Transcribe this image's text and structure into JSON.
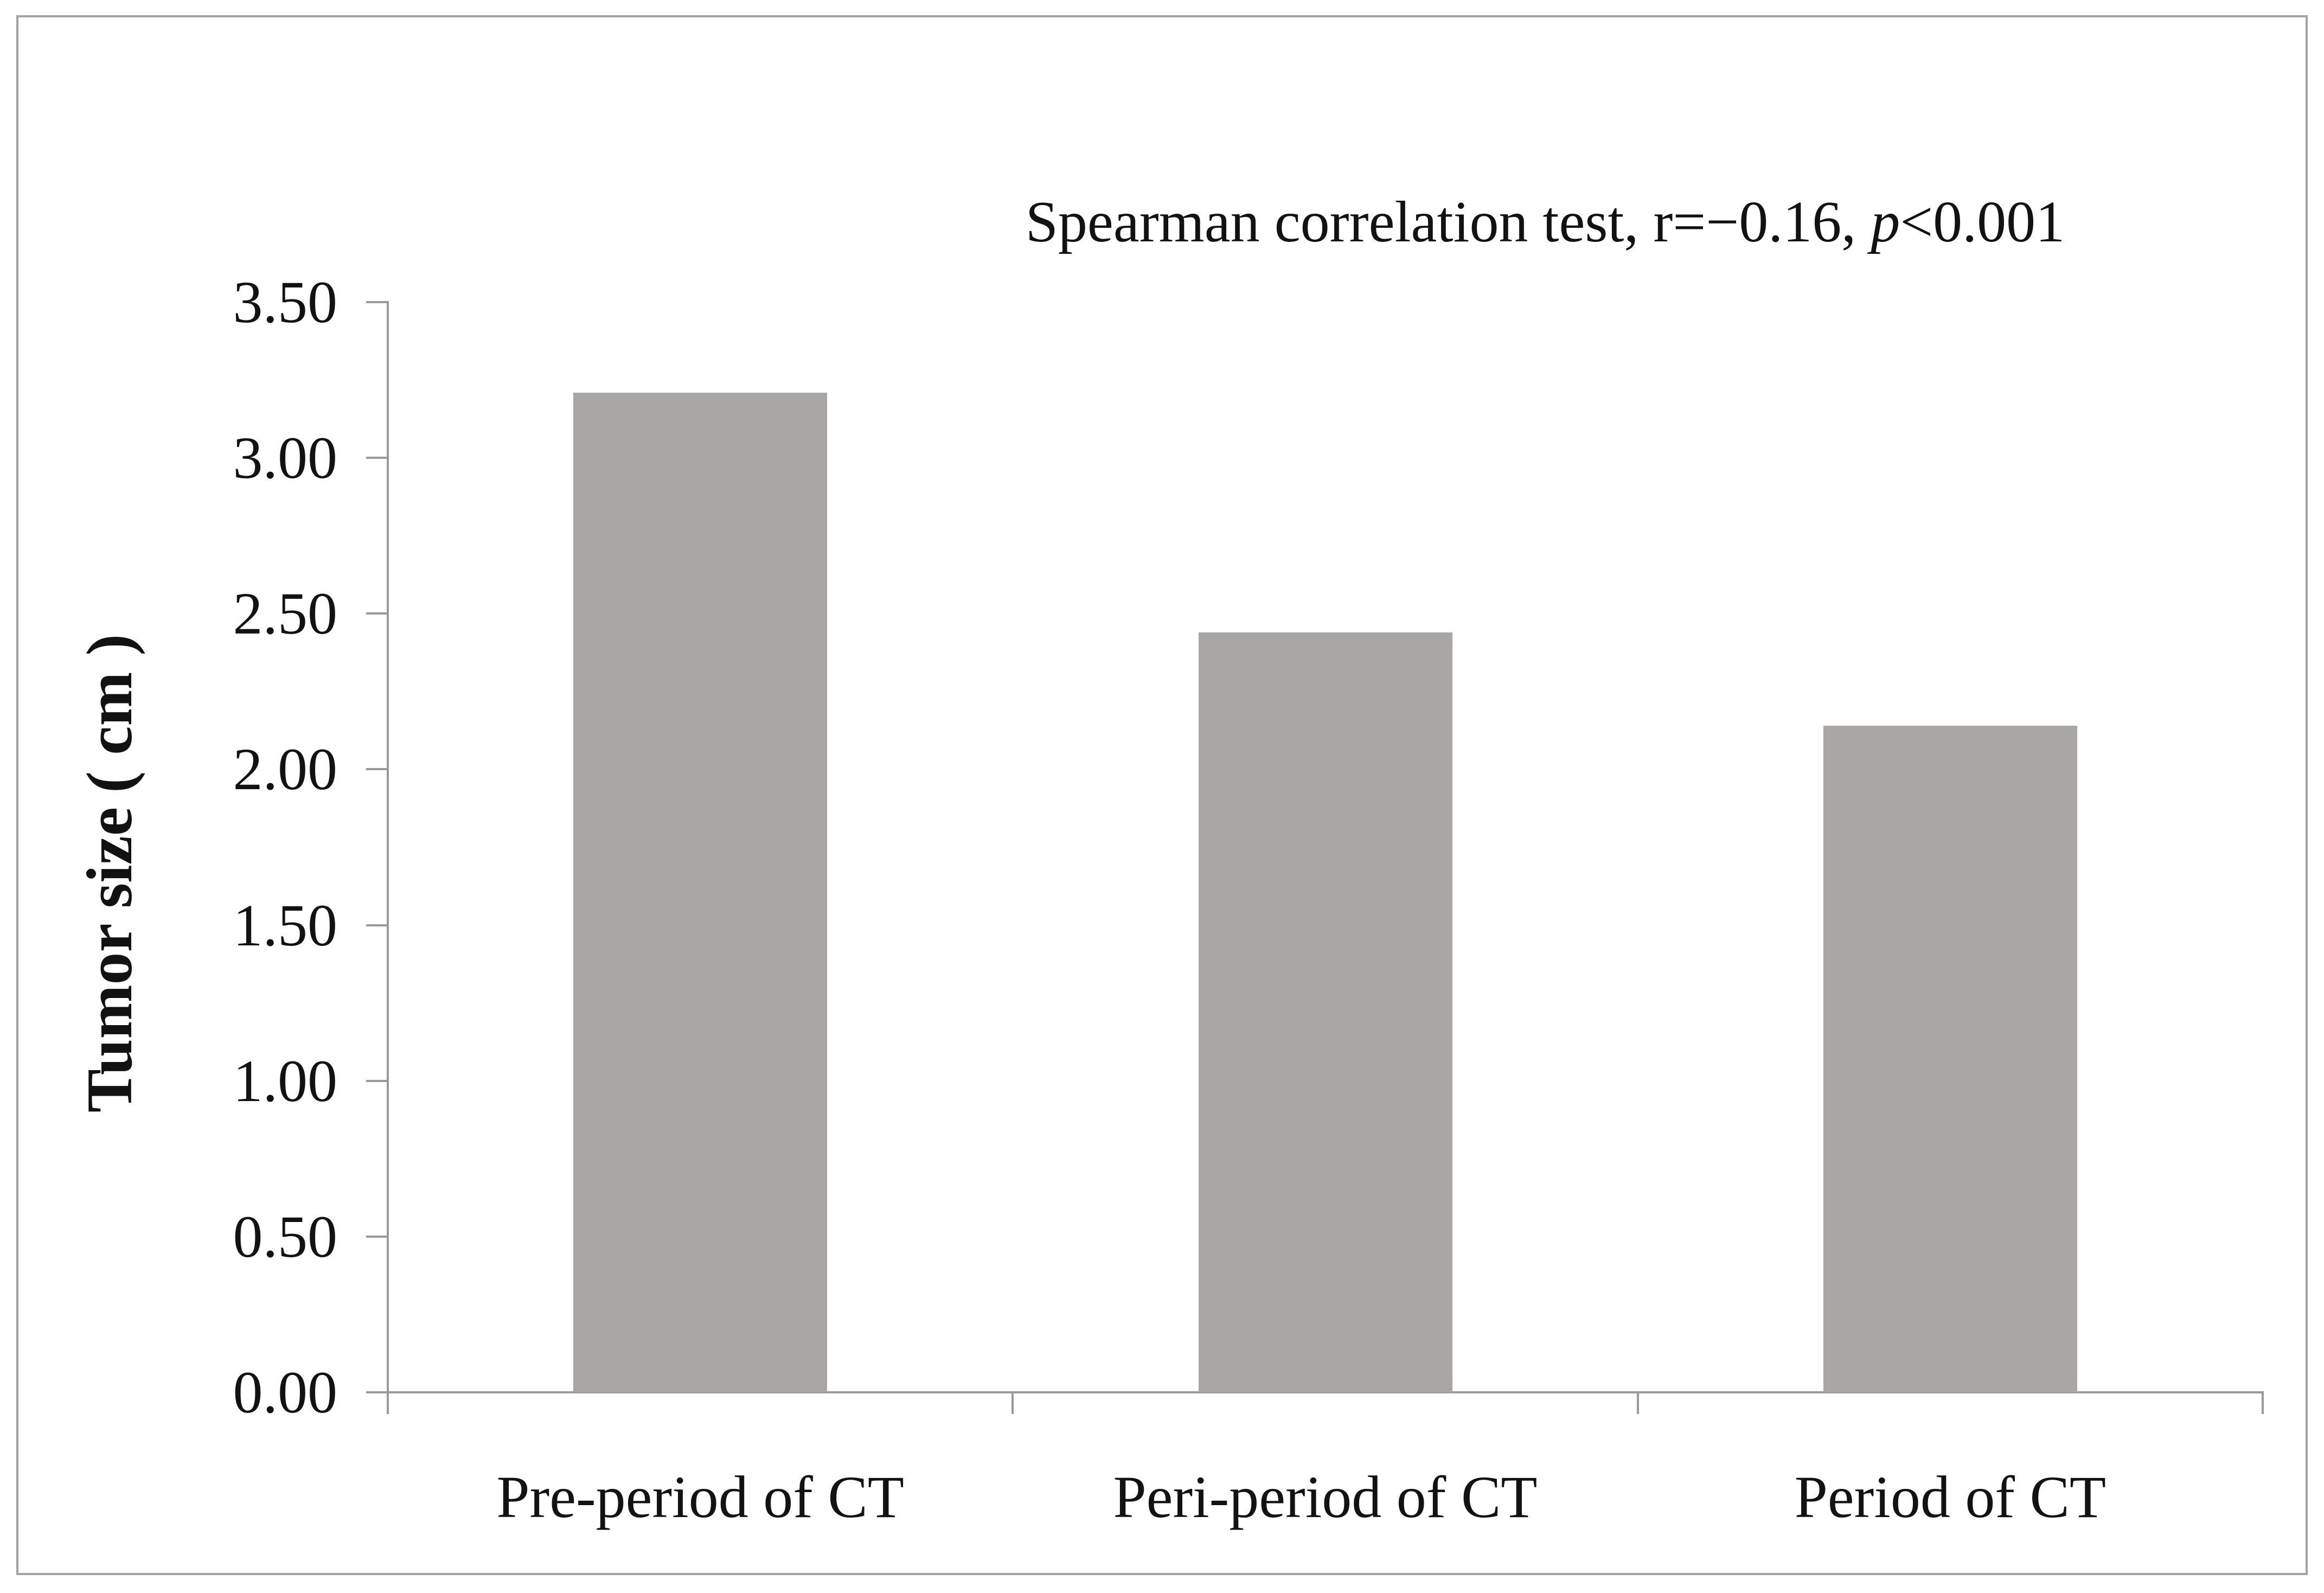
{
  "figure": {
    "background": "#ffffff",
    "border_color": "#a3a3a3"
  },
  "annotation": {
    "pre": "Spearman correlation test, r=−0.16, ",
    "italic_var": "p",
    "post": "<0.001",
    "full": "Spearman correlation test, r=−0.16, p<0.001"
  },
  "chart_data": {
    "type": "bar",
    "title": "",
    "annotation": "Spearman correlation test, r=−0.16, p<0.001",
    "categories": [
      "Pre-period of CT",
      "Peri-period of CT",
      "Period of CT"
    ],
    "values": [
      3.21,
      2.44,
      2.14
    ],
    "xlabel": "",
    "ylabel": "Tumor size （cm）",
    "ylabel_parts": {
      "label": "Tumor size",
      "paren_open": "(",
      "unit": "cm",
      "paren_close": ")"
    },
    "ylim": [
      0,
      3.5
    ],
    "ytick_step": 0.5,
    "yticks": [
      "0.00",
      "0.50",
      "1.00",
      "1.50",
      "2.00",
      "2.50",
      "3.00",
      "3.50"
    ],
    "grid": false,
    "legend": false,
    "bar_color": "#a9a7a5",
    "axis_color": "#9a9a9a",
    "text_color": "#121212"
  }
}
